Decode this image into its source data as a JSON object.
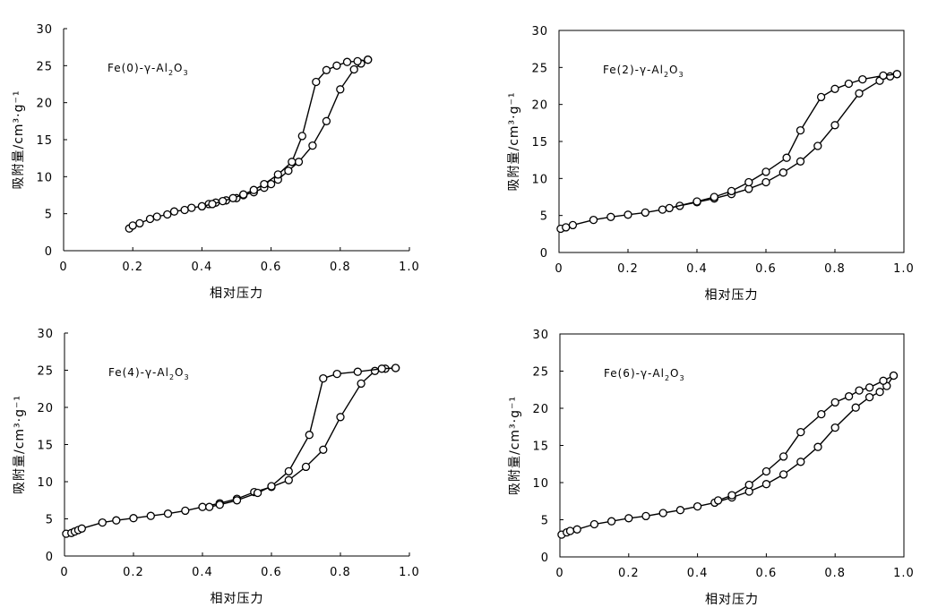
{
  "chart_data": [
    {
      "type": "line",
      "title": "Fe(0)-γ-Al2O3",
      "xlabel": "相对压力",
      "ylabel": "吸附量/cm³·g⁻¹",
      "xlim": [
        0,
        1.0
      ],
      "ylim": [
        0,
        30
      ],
      "xticks": [
        "0",
        "0.2",
        "0.4",
        "0.6",
        "0.8",
        "1.0"
      ],
      "yticks": [
        "0",
        "5",
        "10",
        "15",
        "20",
        "25",
        "30"
      ],
      "frame": "left-bottom",
      "series": [
        {
          "points": [
            [
              0.19,
              3.0
            ],
            [
              0.2,
              3.4
            ],
            [
              0.22,
              3.7
            ],
            [
              0.25,
              4.3
            ],
            [
              0.27,
              4.6
            ],
            [
              0.3,
              4.9
            ],
            [
              0.32,
              5.3
            ],
            [
              0.35,
              5.5
            ],
            [
              0.37,
              5.8
            ],
            [
              0.4,
              6.0
            ],
            [
              0.42,
              6.3
            ],
            [
              0.44,
              6.5
            ],
            [
              0.47,
              6.8
            ],
            [
              0.5,
              7.1
            ],
            [
              0.52,
              7.5
            ],
            [
              0.55,
              7.9
            ],
            [
              0.58,
              8.5
            ],
            [
              0.6,
              9.0
            ],
            [
              0.62,
              9.6
            ],
            [
              0.65,
              10.8
            ],
            [
              0.68,
              12.0
            ],
            [
              0.72,
              14.2
            ],
            [
              0.76,
              17.5
            ],
            [
              0.8,
              21.8
            ],
            [
              0.84,
              24.5
            ],
            [
              0.86,
              25.3
            ],
            [
              0.88,
              25.8
            ]
          ]
        },
        {
          "points": [
            [
              0.88,
              25.8
            ],
            [
              0.85,
              25.6
            ],
            [
              0.82,
              25.5
            ],
            [
              0.79,
              25.0
            ],
            [
              0.76,
              24.4
            ],
            [
              0.73,
              22.8
            ],
            [
              0.69,
              15.5
            ],
            [
              0.66,
              12.0
            ],
            [
              0.62,
              10.3
            ],
            [
              0.58,
              9.0
            ],
            [
              0.55,
              8.2
            ],
            [
              0.52,
              7.6
            ],
            [
              0.49,
              7.1
            ],
            [
              0.46,
              6.7
            ],
            [
              0.43,
              6.3
            ],
            [
              0.4,
              6.0
            ]
          ]
        }
      ]
    },
    {
      "type": "line",
      "title": "Fe(2)-γ-Al2O3",
      "xlabel": "相对压力",
      "ylabel": "吸附量/cm³·g⁻¹",
      "xlim": [
        0,
        1.0
      ],
      "ylim": [
        0,
        30
      ],
      "xticks": [
        "0",
        "0.2",
        "0.4",
        "0.6",
        "0.8",
        "1.0"
      ],
      "yticks": [
        "0",
        "5",
        "10",
        "15",
        "20",
        "25",
        "30"
      ],
      "frame": "box",
      "series": [
        {
          "points": [
            [
              0.005,
              3.2
            ],
            [
              0.02,
              3.4
            ],
            [
              0.04,
              3.7
            ],
            [
              0.1,
              4.4
            ],
            [
              0.15,
              4.8
            ],
            [
              0.2,
              5.1
            ],
            [
              0.25,
              5.4
            ],
            [
              0.3,
              5.8
            ],
            [
              0.35,
              6.3
            ],
            [
              0.4,
              6.8
            ],
            [
              0.45,
              7.3
            ],
            [
              0.5,
              7.9
            ],
            [
              0.55,
              8.6
            ],
            [
              0.6,
              9.5
            ],
            [
              0.65,
              10.8
            ],
            [
              0.7,
              12.3
            ],
            [
              0.75,
              14.4
            ],
            [
              0.8,
              17.2
            ],
            [
              0.87,
              21.5
            ],
            [
              0.93,
              23.2
            ],
            [
              0.96,
              23.8
            ],
            [
              0.98,
              24.1
            ]
          ]
        },
        {
          "points": [
            [
              0.98,
              24.1
            ],
            [
              0.94,
              23.9
            ],
            [
              0.88,
              23.4
            ],
            [
              0.84,
              22.8
            ],
            [
              0.8,
              22.1
            ],
            [
              0.76,
              21.0
            ],
            [
              0.7,
              16.5
            ],
            [
              0.66,
              12.8
            ],
            [
              0.6,
              10.9
            ],
            [
              0.55,
              9.5
            ],
            [
              0.5,
              8.3
            ],
            [
              0.45,
              7.5
            ],
            [
              0.4,
              6.9
            ],
            [
              0.32,
              6.0
            ]
          ]
        }
      ]
    },
    {
      "type": "line",
      "title": "Fe(4)-γ-Al2O3",
      "xlabel": "相对压力",
      "ylabel": "吸附量/cm³·g⁻¹",
      "xlim": [
        0,
        1.0
      ],
      "ylim": [
        0,
        30
      ],
      "xticks": [
        "0",
        "0.2",
        "0.4",
        "0.6",
        "0.8",
        "1.0"
      ],
      "yticks": [
        "0",
        "5",
        "10",
        "15",
        "20",
        "25",
        "30"
      ],
      "frame": "left-bottom",
      "series": [
        {
          "points": [
            [
              0.005,
              3.0
            ],
            [
              0.02,
              3.1
            ],
            [
              0.03,
              3.3
            ],
            [
              0.04,
              3.5
            ],
            [
              0.05,
              3.7
            ],
            [
              0.11,
              4.5
            ],
            [
              0.15,
              4.8
            ],
            [
              0.2,
              5.1
            ],
            [
              0.25,
              5.4
            ],
            [
              0.3,
              5.7
            ],
            [
              0.35,
              6.1
            ],
            [
              0.4,
              6.6
            ],
            [
              0.45,
              7.1
            ],
            [
              0.5,
              7.7
            ],
            [
              0.55,
              8.6
            ],
            [
              0.6,
              9.3
            ],
            [
              0.65,
              10.2
            ],
            [
              0.7,
              12.0
            ],
            [
              0.75,
              14.3
            ],
            [
              0.8,
              18.7
            ],
            [
              0.86,
              23.2
            ],
            [
              0.9,
              24.9
            ],
            [
              0.93,
              25.2
            ],
            [
              0.96,
              25.3
            ]
          ]
        },
        {
          "points": [
            [
              0.96,
              25.3
            ],
            [
              0.92,
              25.2
            ],
            [
              0.85,
              24.8
            ],
            [
              0.79,
              24.5
            ],
            [
              0.75,
              23.9
            ],
            [
              0.71,
              16.3
            ],
            [
              0.65,
              11.4
            ],
            [
              0.6,
              9.4
            ],
            [
              0.56,
              8.5
            ],
            [
              0.5,
              7.5
            ],
            [
              0.45,
              6.9
            ],
            [
              0.42,
              6.6
            ]
          ]
        }
      ]
    },
    {
      "type": "line",
      "title": "Fe(6)-γ-Al2O3",
      "xlabel": "相对压力",
      "ylabel": "吸附量/cm³·g⁻¹",
      "xlim": [
        0,
        1.0
      ],
      "ylim": [
        0,
        30
      ],
      "xticks": [
        "0",
        "0.2",
        "0.4",
        "0.6",
        "0.8",
        "1.0"
      ],
      "yticks": [
        "0",
        "5",
        "10",
        "15",
        "20",
        "25",
        "30"
      ],
      "frame": "box",
      "series": [
        {
          "points": [
            [
              0.005,
              3.0
            ],
            [
              0.02,
              3.3
            ],
            [
              0.03,
              3.5
            ],
            [
              0.05,
              3.7
            ],
            [
              0.1,
              4.4
            ],
            [
              0.15,
              4.8
            ],
            [
              0.2,
              5.2
            ],
            [
              0.25,
              5.5
            ],
            [
              0.3,
              5.9
            ],
            [
              0.35,
              6.3
            ],
            [
              0.4,
              6.8
            ],
            [
              0.45,
              7.3
            ],
            [
              0.5,
              8.0
            ],
            [
              0.55,
              8.8
            ],
            [
              0.6,
              9.8
            ],
            [
              0.65,
              11.1
            ],
            [
              0.7,
              12.8
            ],
            [
              0.75,
              14.8
            ],
            [
              0.8,
              17.4
            ],
            [
              0.86,
              20.1
            ],
            [
              0.9,
              21.5
            ],
            [
              0.93,
              22.2
            ],
            [
              0.95,
              23.0
            ],
            [
              0.97,
              24.4
            ]
          ]
        },
        {
          "points": [
            [
              0.97,
              24.4
            ],
            [
              0.94,
              23.7
            ],
            [
              0.9,
              22.8
            ],
            [
              0.87,
              22.4
            ],
            [
              0.84,
              21.6
            ],
            [
              0.8,
              20.8
            ],
            [
              0.76,
              19.2
            ],
            [
              0.7,
              16.8
            ],
            [
              0.65,
              13.5
            ],
            [
              0.6,
              11.5
            ],
            [
              0.55,
              9.7
            ],
            [
              0.5,
              8.3
            ],
            [
              0.46,
              7.6
            ]
          ]
        }
      ]
    }
  ]
}
